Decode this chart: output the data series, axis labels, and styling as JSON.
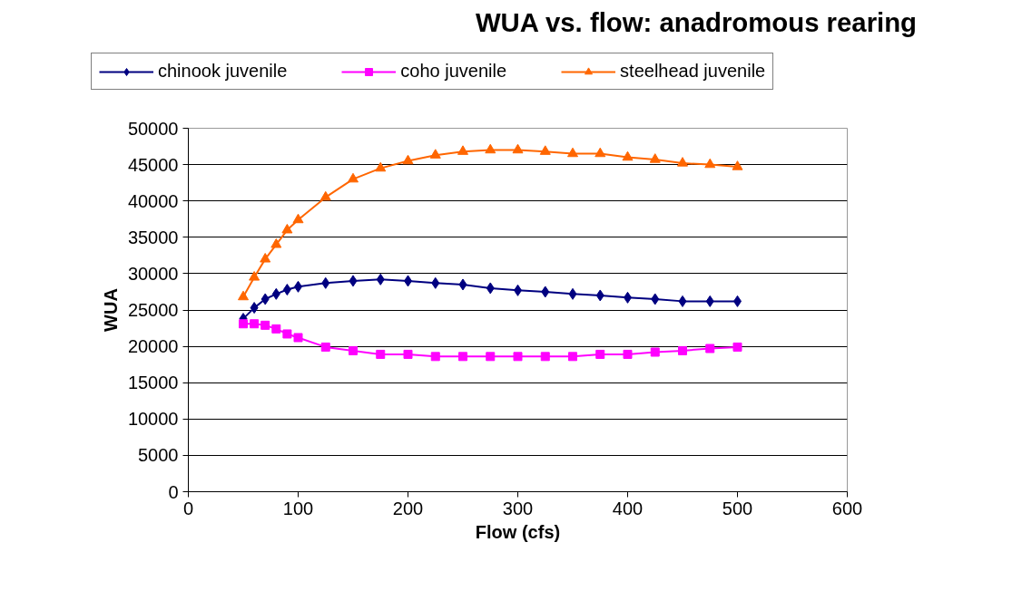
{
  "chart_data": {
    "type": "line",
    "title": "WUA vs. flow: anadromous rearing",
    "xlabel": "Flow (cfs)",
    "ylabel": "WUA",
    "x": [
      50,
      60,
      70,
      80,
      90,
      100,
      125,
      150,
      175,
      200,
      225,
      250,
      275,
      300,
      325,
      350,
      375,
      400,
      425,
      450,
      475,
      500
    ],
    "series": [
      {
        "name": "chinook juvenile",
        "color": "#000080",
        "marker": "diamond",
        "values": [
          23800,
          25300,
          26500,
          27200,
          27800,
          28200,
          28700,
          29000,
          29200,
          29000,
          28700,
          28500,
          28000,
          27700,
          27500,
          27200,
          27000,
          26700,
          26500,
          26200,
          26200,
          26200
        ]
      },
      {
        "name": "coho juvenile",
        "color": "#ff00ff",
        "marker": "square",
        "values": [
          23100,
          23100,
          22900,
          22400,
          21700,
          21200,
          19900,
          19400,
          18900,
          18900,
          18600,
          18600,
          18600,
          18600,
          18600,
          18600,
          18900,
          18900,
          19200,
          19400,
          19700,
          19900
        ]
      },
      {
        "name": "steelhead juvenile",
        "color": "#ff6600",
        "marker": "triangle",
        "values": [
          26800,
          29500,
          32000,
          34000,
          36000,
          37400,
          40500,
          43000,
          44500,
          45500,
          46300,
          46800,
          47000,
          47000,
          46800,
          46500,
          46500,
          46000,
          45700,
          45200,
          45000,
          44700
        ]
      }
    ],
    "xlim": [
      0,
      600
    ],
    "xticks": [
      0,
      100,
      200,
      300,
      400,
      500,
      600
    ],
    "ylim": [
      0,
      50000
    ],
    "yticks": [
      0,
      5000,
      10000,
      15000,
      20000,
      25000,
      30000,
      35000,
      40000,
      45000,
      50000
    ],
    "grid": "y",
    "legend": "top",
    "line_style": "solid"
  }
}
